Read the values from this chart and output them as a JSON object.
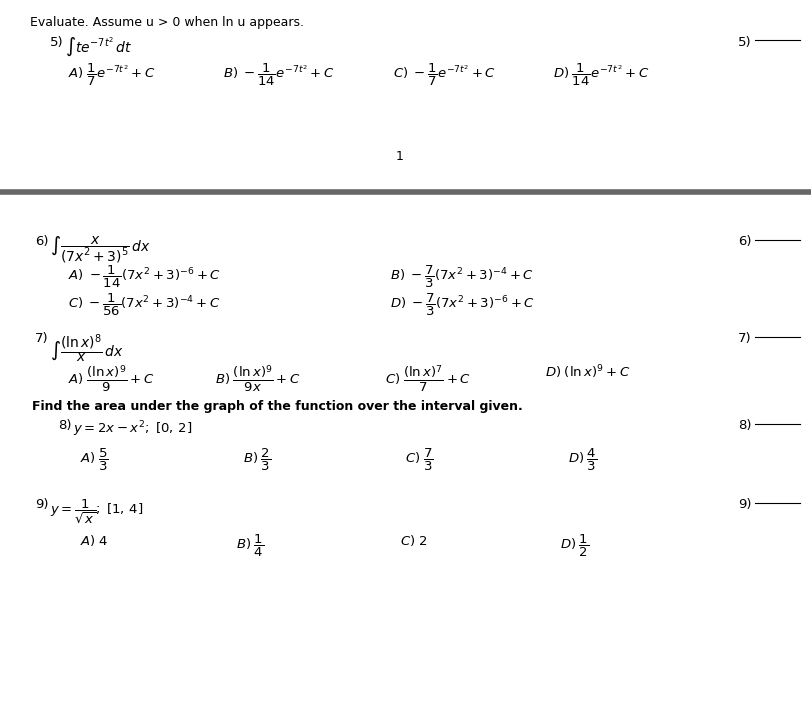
{
  "bg_color": "#ffffff",
  "divider_color": "#666666",
  "items": {
    "instruction": "Evaluate. Assume u > 0 when ln u appears.",
    "page_num": "1",
    "q5_num": "5)",
    "q5_integral": "$\\int te^{-7t^2}\\, dt$",
    "q5_A": "$A)\\;\\dfrac{1}{7}e^{-7t^2}+C$",
    "q5_B": "$B)\\;-\\dfrac{1}{14}e^{-7t^2}+C$",
    "q5_C": "$C)\\;-\\dfrac{1}{7}e^{-7t^2}+C$",
    "q5_D": "$D)\\;\\dfrac{1}{14}e^{-7t^2}+C$",
    "q6_num": "6)",
    "q6_integral": "$\\int \\dfrac{x}{(7x^2+3)^5}\\, dx$",
    "q6_A": "$A)\\;-\\dfrac{1}{14}(7x^2+3)^{-6}+C$",
    "q6_B": "$B)\\;-\\dfrac{7}{3}(7x^2+3)^{-4}+C$",
    "q6_C": "$C)\\;-\\dfrac{1}{56}(7x^2+3)^{-4}+C$",
    "q6_D": "$D)\\;-\\dfrac{7}{3}(7x^2+3)^{-6}+C$",
    "q7_num": "7)",
    "q7_integral": "$\\int \\dfrac{(\\ln x)^8}{x}\\, dx$",
    "q7_A": "$A)\\;\\dfrac{(\\ln x)^9}{9}+C$",
    "q7_B": "$B)\\;\\dfrac{(\\ln x)^9}{9x}+C$",
    "q7_C": "$C)\\;\\dfrac{(\\ln x)^7}{7}+C$",
    "q7_D": "$D)\\;(\\ln x)^9+C$",
    "find_area": "Find the area under the graph of the function over the interval given.",
    "q8_num": "8)",
    "q8_problem": "$y = 2x - x^2;\\; [0,\\, 2]$",
    "q8_A": "$A)\\;\\dfrac{5}{3}$",
    "q8_B": "$B)\\;\\dfrac{2}{3}$",
    "q8_C": "$C)\\;\\dfrac{7}{3}$",
    "q8_D": "$D)\\;\\dfrac{4}{3}$",
    "q9_num": "9)",
    "q9_problem": "$y = \\dfrac{1}{\\sqrt{x}};\\; [1,\\, 4]$",
    "q9_A": "$A)\\; 4$",
    "q9_B": "$B)\\;\\dfrac{1}{4}$",
    "q9_C": "$C)\\; 2$",
    "q9_D": "$D)\\;\\dfrac{1}{2}$"
  }
}
